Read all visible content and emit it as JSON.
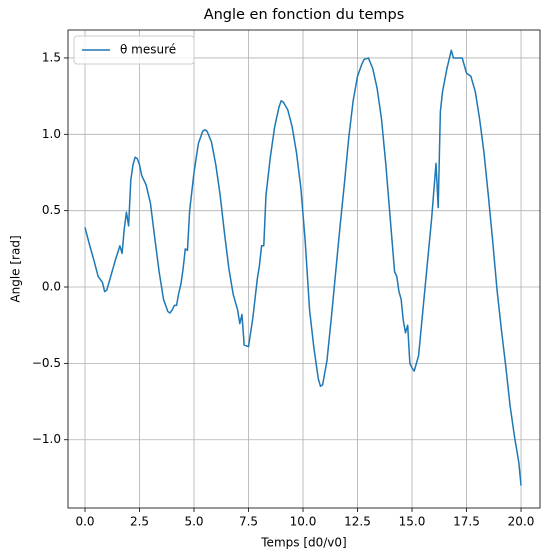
{
  "chart_data": {
    "type": "line",
    "title": "Angle en fonction du temps",
    "xlabel": "Temps [d0/v0]",
    "ylabel": "Angle [rad]",
    "x": [
      0,
      0.2,
      0.4,
      0.6,
      0.8,
      0.9,
      1.0,
      1.2,
      1.4,
      1.6,
      1.7,
      1.8,
      1.9,
      2.0,
      2.1,
      2.2,
      2.3,
      2.4,
      2.5,
      2.6,
      2.8,
      3.0,
      3.2,
      3.4,
      3.6,
      3.8,
      3.9,
      4.0,
      4.1,
      4.2,
      4.3,
      4.4,
      4.5,
      4.6,
      4.7,
      4.8,
      5.0,
      5.2,
      5.4,
      5.5,
      5.6,
      5.8,
      6.0,
      6.2,
      6.4,
      6.6,
      6.8,
      7.0,
      7.1,
      7.2,
      7.3,
      7.5,
      7.7,
      7.9,
      8.0,
      8.1,
      8.2,
      8.3,
      8.5,
      8.7,
      8.9,
      9.0,
      9.1,
      9.3,
      9.5,
      9.7,
      9.9,
      10.1,
      10.3,
      10.5,
      10.7,
      10.8,
      10.9,
      11.1,
      11.3,
      11.5,
      11.7,
      11.9,
      12.1,
      12.3,
      12.5,
      12.7,
      12.8,
      13.0,
      13.2,
      13.4,
      13.6,
      13.8,
      14.0,
      14.2,
      14.3,
      14.4,
      14.5,
      14.6,
      14.7,
      14.8,
      14.9,
      15.0,
      15.1,
      15.3,
      15.5,
      15.7,
      15.9,
      16.1,
      16.2,
      16.3,
      16.4,
      16.6,
      16.8,
      16.9,
      17.1,
      17.3,
      17.5,
      17.7,
      17.9,
      18.1,
      18.3,
      18.5,
      18.7,
      18.9,
      19.1,
      19.3,
      19.5,
      19.7,
      19.9,
      20.0
    ],
    "series": [
      {
        "name": "θ mesuré",
        "color": "#1f77b4",
        "values": [
          0.39,
          0.28,
          0.18,
          0.07,
          0.03,
          -0.03,
          -0.02,
          0.08,
          0.18,
          0.27,
          0.22,
          0.38,
          0.49,
          0.4,
          0.7,
          0.8,
          0.85,
          0.84,
          0.8,
          0.73,
          0.67,
          0.55,
          0.32,
          0.1,
          -0.08,
          -0.16,
          -0.17,
          -0.15,
          -0.12,
          -0.12,
          -0.04,
          0.02,
          0.12,
          0.25,
          0.24,
          0.5,
          0.75,
          0.94,
          1.02,
          1.03,
          1.02,
          0.95,
          0.8,
          0.6,
          0.35,
          0.12,
          -0.05,
          -0.15,
          -0.24,
          -0.18,
          -0.38,
          -0.39,
          -0.2,
          0.05,
          0.14,
          0.27,
          0.27,
          0.6,
          0.85,
          1.05,
          1.18,
          1.22,
          1.21,
          1.16,
          1.05,
          0.88,
          0.65,
          0.3,
          -0.15,
          -0.4,
          -0.6,
          -0.65,
          -0.64,
          -0.48,
          -0.2,
          0.1,
          0.4,
          0.68,
          0.98,
          1.22,
          1.38,
          1.46,
          1.49,
          1.5,
          1.43,
          1.3,
          1.1,
          0.8,
          0.45,
          0.1,
          0.07,
          -0.03,
          -0.08,
          -0.22,
          -0.3,
          -0.25,
          -0.5,
          -0.53,
          -0.55,
          -0.45,
          -0.15,
          0.15,
          0.45,
          0.81,
          0.52,
          1.15,
          1.28,
          1.43,
          1.55,
          1.5,
          1.5,
          1.5,
          1.4,
          1.38,
          1.28,
          1.1,
          0.88,
          0.6,
          0.3,
          -0.02,
          -0.28,
          -0.52,
          -0.78,
          -0.98,
          -1.15,
          -1.3
        ]
      }
    ],
    "xlim": [
      -0.78,
      20.87
    ],
    "ylim": [
      -1.447,
      1.683
    ],
    "xticks": [
      {
        "value": 0,
        "label": "0.0"
      },
      {
        "value": 2.5,
        "label": "2.5"
      },
      {
        "value": 5,
        "label": "5.0"
      },
      {
        "value": 7.5,
        "label": "7.5"
      },
      {
        "value": 10,
        "label": "10.0"
      },
      {
        "value": 12.5,
        "label": "12.5"
      },
      {
        "value": 15,
        "label": "15.0"
      },
      {
        "value": 17.5,
        "label": "17.5"
      },
      {
        "value": 20,
        "label": "20.0"
      }
    ],
    "yticks": [
      {
        "value": -1,
        "label": "−1.0"
      },
      {
        "value": -0.5,
        "label": "−0.5"
      },
      {
        "value": 0,
        "label": "0.0"
      },
      {
        "value": 0.5,
        "label": "0.5"
      },
      {
        "value": 1,
        "label": "1.0"
      },
      {
        "value": 1.5,
        "label": "1.5"
      }
    ],
    "grid": true,
    "legend": "upper left"
  }
}
